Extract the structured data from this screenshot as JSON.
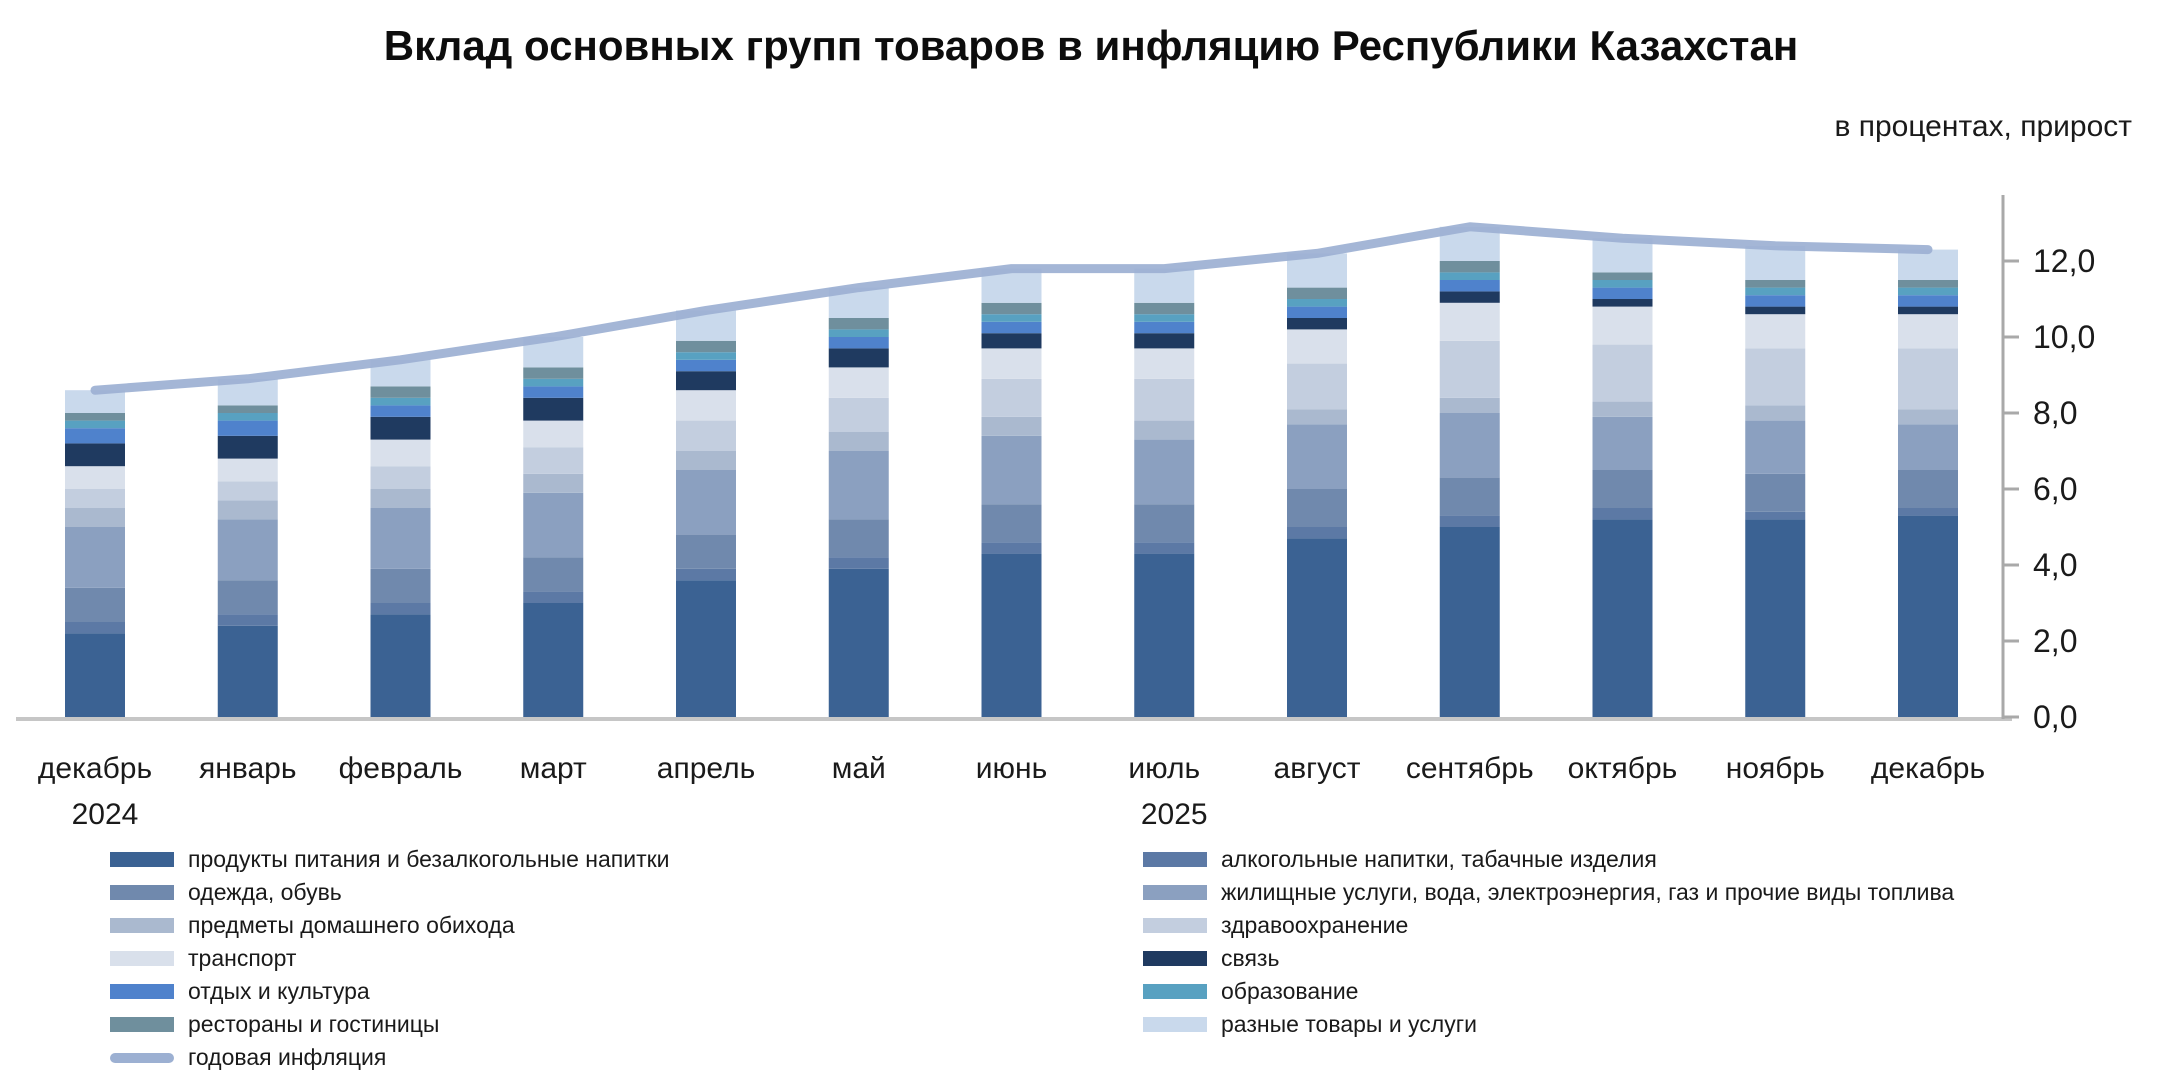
{
  "chart_data": {
    "type": "bar",
    "stacked": true,
    "title": "Вклад основных групп товаров в инфляцию Республики Казахстан",
    "units_label": "в процентах, прирост",
    "categories": [
      "декабрь",
      "январь",
      "февраль",
      "март",
      "апрель",
      "май",
      "июнь",
      "июль",
      "август",
      "сентябрь",
      "октябрь",
      "ноябрь",
      "декабрь"
    ],
    "year_labels": [
      {
        "text": "2024",
        "category_index": 0
      },
      {
        "text": "2025",
        "category_index": 7
      }
    ],
    "series": [
      {
        "name": "продукты питания и безалкогольные напитки",
        "color": "#3b6293",
        "values": [
          2.2,
          2.4,
          2.7,
          3.0,
          3.6,
          3.9,
          4.3,
          4.3,
          4.7,
          5.0,
          5.2,
          5.2,
          5.3
        ]
      },
      {
        "name": "алкогольные напитки, табачные изделия",
        "color": "#5c79a5",
        "values": [
          0.3,
          0.3,
          0.3,
          0.3,
          0.3,
          0.3,
          0.3,
          0.3,
          0.3,
          0.3,
          0.3,
          0.2,
          0.2
        ]
      },
      {
        "name": "одежда, обувь",
        "color": "#7089ad",
        "values": [
          0.9,
          0.9,
          0.9,
          0.9,
          0.9,
          1.0,
          1.0,
          1.0,
          1.0,
          1.0,
          1.0,
          1.0,
          1.0
        ]
      },
      {
        "name": "жилищные услуги, вода, электроэнергия, газ и прочие виды топлива",
        "color": "#8ba0c0",
        "values": [
          1.6,
          1.6,
          1.6,
          1.7,
          1.7,
          1.8,
          1.8,
          1.7,
          1.7,
          1.7,
          1.4,
          1.4,
          1.2
        ]
      },
      {
        "name": "предметы домашнего обихода",
        "color": "#aab9cf",
        "values": [
          0.5,
          0.5,
          0.5,
          0.5,
          0.5,
          0.5,
          0.5,
          0.5,
          0.4,
          0.4,
          0.4,
          0.4,
          0.4
        ]
      },
      {
        "name": "здравоохранение",
        "color": "#c3cedf",
        "values": [
          0.5,
          0.5,
          0.6,
          0.7,
          0.8,
          0.9,
          1.0,
          1.1,
          1.2,
          1.5,
          1.5,
          1.5,
          1.6
        ]
      },
      {
        "name": "транспорт",
        "color": "#d9e0eb",
        "values": [
          0.6,
          0.6,
          0.7,
          0.7,
          0.8,
          0.8,
          0.8,
          0.8,
          0.9,
          1.0,
          1.0,
          0.9,
          0.9
        ]
      },
      {
        "name": "связь",
        "color": "#1f3a60",
        "values": [
          0.6,
          0.6,
          0.6,
          0.6,
          0.5,
          0.5,
          0.4,
          0.4,
          0.3,
          0.3,
          0.2,
          0.2,
          0.2
        ]
      },
      {
        "name": "отдых и культура",
        "color": "#4f82cc",
        "values": [
          0.4,
          0.4,
          0.3,
          0.3,
          0.3,
          0.3,
          0.3,
          0.3,
          0.3,
          0.3,
          0.3,
          0.3,
          0.3
        ]
      },
      {
        "name": "образование",
        "color": "#58a1c1",
        "values": [
          0.2,
          0.2,
          0.2,
          0.2,
          0.2,
          0.2,
          0.2,
          0.2,
          0.2,
          0.2,
          0.2,
          0.2,
          0.2
        ]
      },
      {
        "name": "рестораны и гостиницы",
        "color": "#6f8f9d",
        "values": [
          0.2,
          0.2,
          0.3,
          0.3,
          0.3,
          0.3,
          0.3,
          0.3,
          0.3,
          0.3,
          0.2,
          0.2,
          0.2
        ]
      },
      {
        "name": "разные товары и услуги",
        "color": "#c9d9ec",
        "values": [
          0.6,
          0.7,
          0.7,
          0.8,
          0.8,
          0.8,
          0.9,
          0.9,
          0.9,
          0.9,
          0.9,
          0.9,
          0.8
        ]
      }
    ],
    "line_series": {
      "name": "годовая инфляция",
      "color": "#9cb0d2",
      "values": [
        8.6,
        8.9,
        9.4,
        10.0,
        10.7,
        11.3,
        11.8,
        11.8,
        12.2,
        12.9,
        12.6,
        12.4,
        12.3
      ]
    },
    "y_ticks": [
      0,
      2,
      4,
      6,
      8,
      10,
      12
    ],
    "y_tick_labels": [
      "0,0",
      "2,0",
      "4,0",
      "6,0",
      "8,0",
      "10,0",
      "12,0"
    ],
    "ylim": [
      0,
      13.8
    ],
    "grid": false,
    "legend_position": "bottom",
    "legend_columns": [
      [
        0,
        2,
        4,
        6,
        8,
        10,
        "line"
      ],
      [
        1,
        3,
        5,
        7,
        9,
        11
      ]
    ],
    "axis_color": "#a9a9a9",
    "baseline_color": "#c6c6c6"
  }
}
